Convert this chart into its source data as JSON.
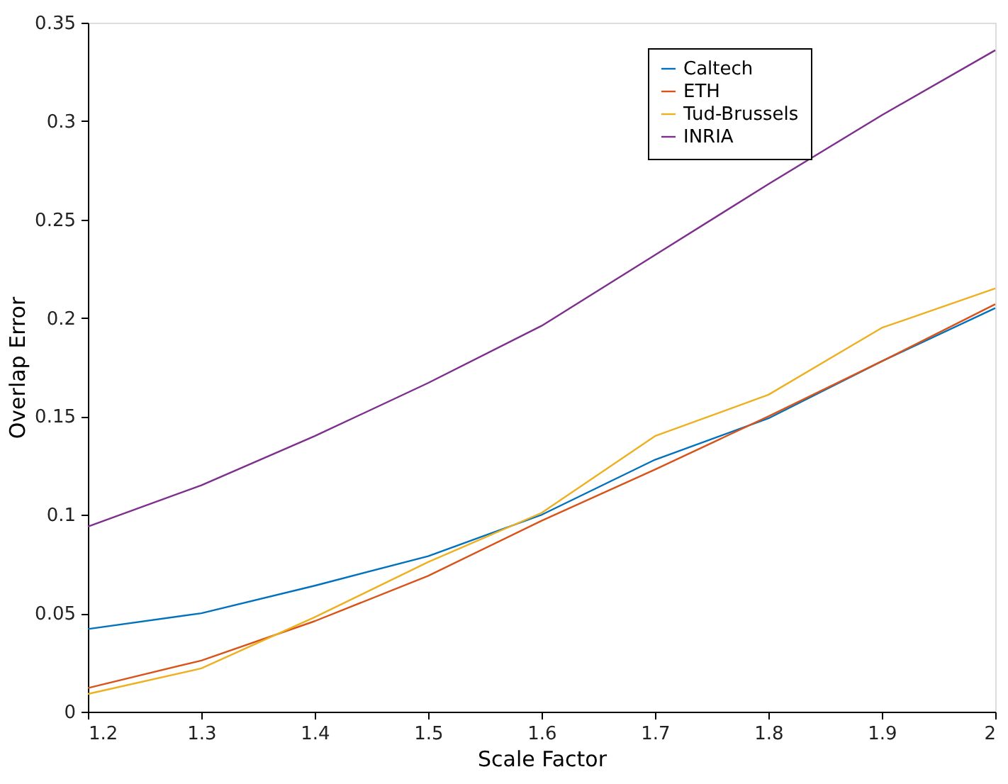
{
  "chart_data": {
    "type": "line",
    "xlabel": "Scale Factor",
    "ylabel": "Overlap Error",
    "x": [
      1.2,
      1.3,
      1.4,
      1.5,
      1.6,
      1.7,
      1.8,
      1.9,
      2.0
    ],
    "series": [
      {
        "name": "Caltech",
        "color": "#0072bd",
        "values": [
          0.042,
          0.05,
          0.064,
          0.079,
          0.1,
          0.128,
          0.149,
          0.178,
          0.205
        ]
      },
      {
        "name": "ETH",
        "color": "#d95319",
        "values": [
          0.012,
          0.026,
          0.046,
          0.069,
          0.097,
          0.123,
          0.15,
          0.178,
          0.207
        ]
      },
      {
        "name": "Tud-Brussels",
        "color": "#edb120",
        "values": [
          0.009,
          0.022,
          0.048,
          0.076,
          0.101,
          0.14,
          0.161,
          0.195,
          0.215
        ]
      },
      {
        "name": "INRIA",
        "color": "#7e2f8e",
        "values": [
          0.094,
          0.115,
          0.14,
          0.167,
          0.196,
          0.232,
          0.268,
          0.303,
          0.336
        ]
      }
    ],
    "xlim": [
      1.2,
      2.0
    ],
    "xticks": [
      1.2,
      1.3,
      1.4,
      1.5,
      1.6,
      1.7,
      1.8,
      1.9,
      {
        "value": 2.0,
        "label": "2"
      }
    ],
    "ylim": [
      0,
      0.35
    ],
    "yticks": [
      0,
      0.05,
      0.1,
      0.15,
      0.2,
      0.25,
      0.3,
      0.35
    ],
    "grid": false,
    "legend": "top right",
    "marker": "none",
    "line_style": "solid"
  }
}
